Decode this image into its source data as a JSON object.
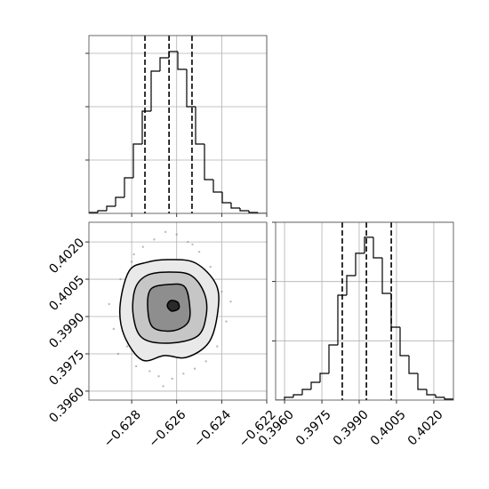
{
  "chart_data": [
    {
      "type": "histogram",
      "bins": [
        -0.6299,
        -0.629505,
        -0.62911,
        -0.628715,
        -0.62832,
        -0.627925,
        -0.62753,
        -0.627135,
        -0.62674,
        -0.626345,
        -0.62595,
        -0.625555,
        -0.62516,
        -0.624765,
        -0.62437,
        -0.623975,
        -0.62358,
        -0.623185,
        -0.62279,
        -0.622395,
        -0.622
      ],
      "values": [
        5,
        15,
        40,
        90,
        200,
        390,
        575,
        800,
        875,
        910,
        810,
        600,
        390,
        190,
        120,
        60,
        30,
        15,
        5,
        0
      ],
      "quantiles": [
        -0.62741,
        -0.62634,
        -0.62532
      ],
      "xlim": [
        -0.6299,
        -0.622
      ],
      "xticks": [
        -0.628,
        -0.626,
        -0.624,
        -0.622
      ],
      "ylim": [
        0,
        1000
      ],
      "yticks": [
        300,
        600,
        900
      ],
      "color": "#000000",
      "grid": true
    },
    {
      "type": "scatter-contour",
      "x": [
        -0.629,
        -0.6288,
        -0.6285,
        -0.6282,
        -0.628,
        -0.6278,
        -0.6275,
        -0.6272,
        -0.627,
        -0.6268,
        -0.6265,
        -0.6262,
        -0.626,
        -0.6257,
        -0.6255,
        -0.6252,
        -0.625,
        -0.6247,
        -0.6245,
        -0.6242,
        -0.624,
        -0.6238,
        -0.6286,
        -0.6279,
        -0.6266,
        -0.6253,
        -0.6244,
        -0.6274,
        -0.6259,
        -0.6236
      ],
      "y": [
        0.3995,
        0.3985,
        0.4005,
        0.3978,
        0.4012,
        0.397,
        0.4018,
        0.3968,
        0.4021,
        0.3966,
        0.4024,
        0.3965,
        0.4023,
        0.3967,
        0.402,
        0.3969,
        0.4016,
        0.3972,
        0.401,
        0.3978,
        0.4,
        0.3988,
        0.3975,
        0.4015,
        0.3962,
        0.4019,
        0.3994,
        0.3992,
        0.3982,
        0.3996
      ],
      "contours": [
        {
          "x": [
            -0.62635,
            -0.62516,
            -0.62425,
            -0.62417,
            -0.62457,
            -0.62556,
            -0.62654,
            -0.62753,
            -0.62832,
            -0.62852,
            -0.62812,
            -0.62733
          ],
          "y": [
            0.40129,
            0.40115,
            0.40029,
            0.39922,
            0.39796,
            0.39736,
            0.39743,
            0.39725,
            0.39821,
            0.39939,
            0.40082,
            0.40118
          ]
        },
        {
          "x": [
            -0.62635,
            -0.62536,
            -0.62477,
            -0.62469,
            -0.62508,
            -0.62635,
            -0.62753,
            -0.62793,
            -0.62785,
            -0.62733
          ],
          "y": [
            0.40079,
            0.40065,
            0.39993,
            0.39904,
            0.39821,
            0.39793,
            0.39814,
            0.39904,
            0.40011,
            0.40065
          ]
        },
        {
          "x": [
            -0.62635,
            -0.62567,
            -0.62544,
            -0.62548,
            -0.62615,
            -0.62706,
            -0.62729,
            -0.62714
          ],
          "y": [
            0.40029,
            0.40022,
            0.39957,
            0.39879,
            0.39843,
            0.39857,
            0.39939,
            0.40011
          ]
        },
        {
          "x": [
            -0.62627,
            -0.62595,
            -0.62591,
            -0.62623,
            -0.62642
          ],
          "y": [
            0.39964,
            0.39957,
            0.39932,
            0.39922,
            0.39943
          ]
        }
      ],
      "xlim": [
        -0.6299,
        -0.622
      ],
      "xticks": [
        {
          "value": -0.628,
          "label": "−0.628"
        },
        {
          "value": -0.626,
          "label": "−0.626"
        },
        {
          "value": -0.624,
          "label": "−0.624"
        },
        {
          "value": -0.622,
          "label": "−0.622"
        }
      ],
      "ylim": [
        0.39564,
        0.40279
      ],
      "yticks": [
        {
          "value": 0.396,
          "label": "0.3960"
        },
        {
          "value": 0.3975,
          "label": "0.3975"
        },
        {
          "value": 0.399,
          "label": "0.3990"
        },
        {
          "value": 0.4005,
          "label": "0.4005"
        },
        {
          "value": 0.402,
          "label": "0.4020"
        }
      ],
      "color": "#000000",
      "grid": true
    },
    {
      "type": "histogram",
      "bins": [
        0.39564,
        0.3959975,
        0.396355,
        0.3967125,
        0.39707,
        0.3974275,
        0.397785,
        0.3981425,
        0.3985,
        0.3988575,
        0.399215,
        0.3995725,
        0.39993,
        0.4002875,
        0.400645,
        0.4010025,
        0.40136,
        0.4017175,
        0.402075,
        0.4024325,
        0.40279
      ],
      "values": [
        0,
        14,
        27,
        54,
        90,
        135,
        279,
        531,
        630,
        743,
        824,
        720,
        540,
        369,
        225,
        135,
        54,
        27,
        14,
        5
      ],
      "quantiles": [
        0.39832,
        0.39929,
        0.40029
      ],
      "xlim": [
        0.39564,
        0.40279
      ],
      "xticks": [
        {
          "value": 0.396,
          "label": "0.3960"
        },
        {
          "value": 0.3975,
          "label": "0.3975"
        },
        {
          "value": 0.399,
          "label": "0.3990"
        },
        {
          "value": 0.4005,
          "label": "0.4005"
        },
        {
          "value": 0.402,
          "label": "0.4020"
        }
      ],
      "ylim": [
        0,
        900
      ],
      "yticks": [
        300,
        600,
        900
      ],
      "color": "#000000",
      "grid": true
    }
  ]
}
